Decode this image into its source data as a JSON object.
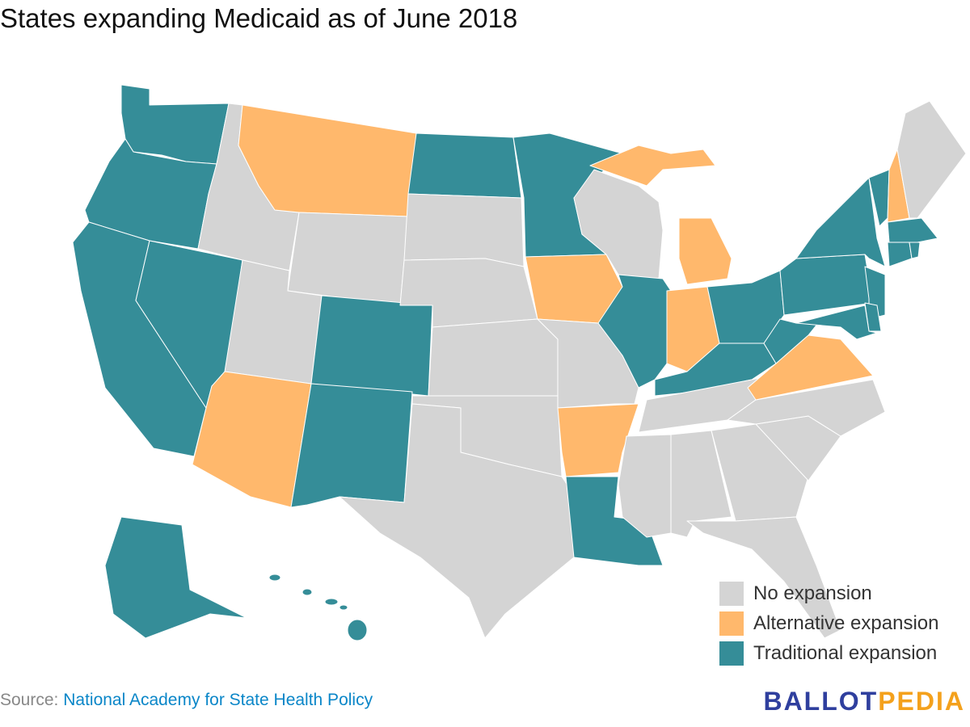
{
  "title": "States expanding Medicaid as of June 2018",
  "legend": [
    {
      "key": "none",
      "label": "No expansion",
      "color": "#d4d4d4"
    },
    {
      "key": "alt",
      "label": "Alternative expansion",
      "color": "#ffb86c"
    },
    {
      "key": "trad",
      "label": "Traditional expansion",
      "color": "#358d98"
    }
  ],
  "source": {
    "prefix": "Source:",
    "link_text": "National Academy for State Health Policy"
  },
  "logo": {
    "part1": "BALLOT",
    "part2": "PEDIA"
  },
  "map_data": {
    "expansion_status": {
      "WA": "trad",
      "OR": "trad",
      "CA": "trad",
      "NV": "trad",
      "ID": "none",
      "MT": "alt",
      "WY": "none",
      "UT": "none",
      "AZ": "alt",
      "CO": "trad",
      "NM": "trad",
      "ND": "trad",
      "SD": "none",
      "NE": "none",
      "KS": "none",
      "OK": "none",
      "TX": "none",
      "MN": "trad",
      "IA": "alt",
      "MO": "none",
      "AR": "alt",
      "LA": "trad",
      "WI": "none",
      "IL": "trad",
      "MI": "alt",
      "IN": "alt",
      "OH": "trad",
      "KY": "trad",
      "TN": "none",
      "MS": "none",
      "AL": "none",
      "GA": "none",
      "FL": "none",
      "SC": "none",
      "NC": "none",
      "VA": "alt",
      "WV": "trad",
      "PA": "trad",
      "NY": "trad",
      "VT": "trad",
      "NH": "alt",
      "ME": "none",
      "MA": "trad",
      "CT": "trad",
      "RI": "trad",
      "NJ": "trad",
      "DE": "trad",
      "MD": "trad",
      "AK": "trad",
      "HI": "trad"
    }
  }
}
